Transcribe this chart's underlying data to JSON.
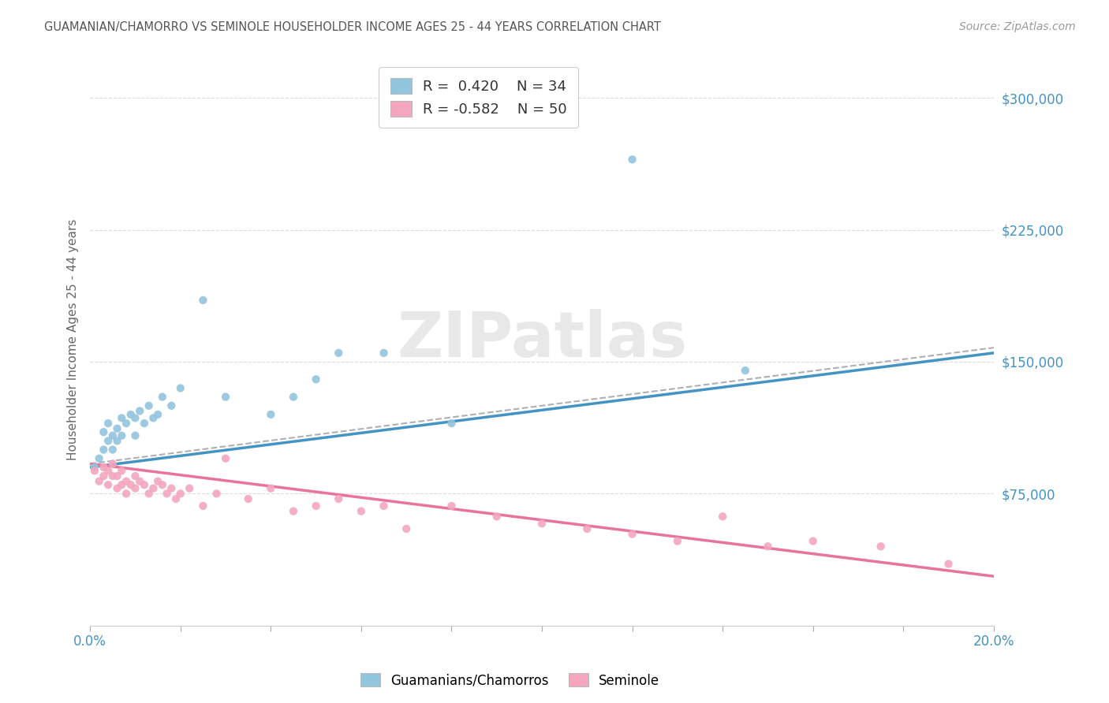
{
  "title": "GUAMANIAN/CHAMORRO VS SEMINOLE HOUSEHOLDER INCOME AGES 25 - 44 YEARS CORRELATION CHART",
  "source": "Source: ZipAtlas.com",
  "ylabel": "Householder Income Ages 25 - 44 years",
  "xlim": [
    0.0,
    0.2
  ],
  "ylim": [
    0,
    325000
  ],
  "yticks": [
    75000,
    150000,
    225000,
    300000
  ],
  "ytick_labels": [
    "$75,000",
    "$150,000",
    "$225,000",
    "$300,000"
  ],
  "legend_r1": "R =  0.420",
  "legend_n1": "N = 34",
  "legend_r2": "R = -0.582",
  "legend_n2": "N = 50",
  "color_blue": "#92c5de",
  "color_pink": "#f4a6be",
  "color_blue_line": "#4393c3",
  "color_pink_line": "#e8749a",
  "color_dashed": "#b0b0b0",
  "color_axis_text": "#4393c3",
  "blue_line_x": [
    0.0,
    0.2
  ],
  "blue_line_y": [
    90000,
    155000
  ],
  "pink_line_x": [
    0.0,
    0.2
  ],
  "pink_line_y": [
    92000,
    28000
  ],
  "dash_line_x": [
    0.0,
    0.2
  ],
  "dash_line_y": [
    92000,
    158000
  ],
  "blue_scatter_x": [
    0.001,
    0.002,
    0.003,
    0.003,
    0.004,
    0.004,
    0.005,
    0.005,
    0.006,
    0.006,
    0.007,
    0.007,
    0.008,
    0.009,
    0.01,
    0.01,
    0.011,
    0.012,
    0.013,
    0.014,
    0.015,
    0.016,
    0.018,
    0.02,
    0.025,
    0.03,
    0.04,
    0.045,
    0.05,
    0.055,
    0.065,
    0.08,
    0.12,
    0.145
  ],
  "blue_scatter_y": [
    90000,
    95000,
    100000,
    110000,
    105000,
    115000,
    100000,
    108000,
    112000,
    105000,
    118000,
    108000,
    115000,
    120000,
    118000,
    108000,
    122000,
    115000,
    125000,
    118000,
    120000,
    130000,
    125000,
    135000,
    185000,
    130000,
    120000,
    130000,
    140000,
    155000,
    155000,
    115000,
    265000,
    145000
  ],
  "pink_scatter_x": [
    0.001,
    0.002,
    0.003,
    0.003,
    0.004,
    0.004,
    0.005,
    0.005,
    0.006,
    0.006,
    0.007,
    0.007,
    0.008,
    0.008,
    0.009,
    0.01,
    0.01,
    0.011,
    0.012,
    0.013,
    0.014,
    0.015,
    0.016,
    0.017,
    0.018,
    0.019,
    0.02,
    0.022,
    0.025,
    0.028,
    0.03,
    0.035,
    0.04,
    0.045,
    0.05,
    0.055,
    0.06,
    0.065,
    0.07,
    0.08,
    0.09,
    0.1,
    0.11,
    0.12,
    0.13,
    0.14,
    0.15,
    0.16,
    0.175,
    0.19
  ],
  "pink_scatter_y": [
    88000,
    82000,
    85000,
    90000,
    88000,
    80000,
    85000,
    92000,
    78000,
    85000,
    80000,
    88000,
    82000,
    75000,
    80000,
    85000,
    78000,
    82000,
    80000,
    75000,
    78000,
    82000,
    80000,
    75000,
    78000,
    72000,
    75000,
    78000,
    68000,
    75000,
    95000,
    72000,
    78000,
    65000,
    68000,
    72000,
    65000,
    68000,
    55000,
    68000,
    62000,
    58000,
    55000,
    52000,
    48000,
    62000,
    45000,
    48000,
    45000,
    35000
  ]
}
